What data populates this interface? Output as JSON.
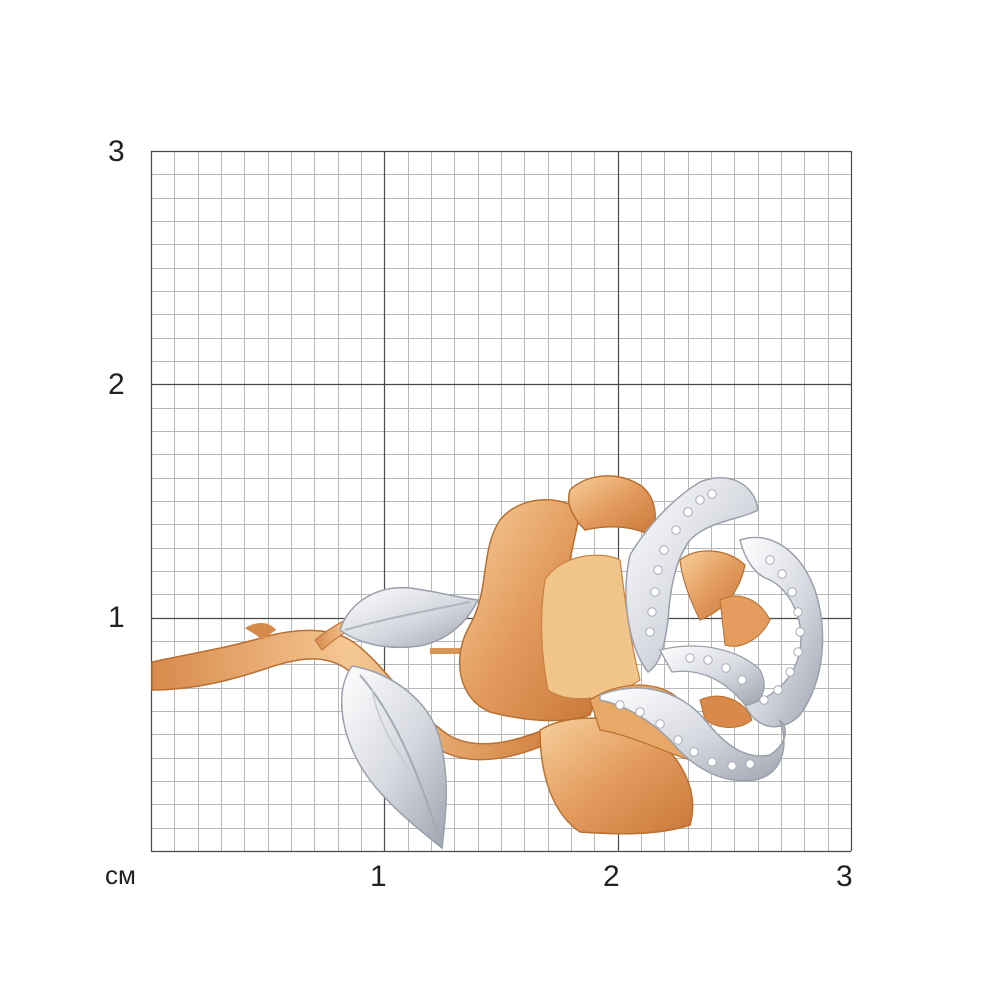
{
  "scale": {
    "unit_label": "см",
    "x_ticks": [
      "1",
      "2",
      "3"
    ],
    "y_ticks": [
      "3",
      "2",
      "1"
    ],
    "range_cm": [
      0,
      3
    ],
    "minor_divisions_per_cm": 10
  },
  "colors": {
    "background": "#ffffff",
    "minor_grid": "#b8b8b8",
    "major_grid": "#4a4a4a",
    "rose_gold": "#e3a066",
    "rose_gold_dark": "#c27a3e",
    "rose_gold_light": "#f7d6ac",
    "white_gold": "#e2e4ea",
    "white_gold_dark": "#a8acb6",
    "diamond": "#ffffff"
  },
  "subject": {
    "icon": "rose-brooch-icon"
  }
}
